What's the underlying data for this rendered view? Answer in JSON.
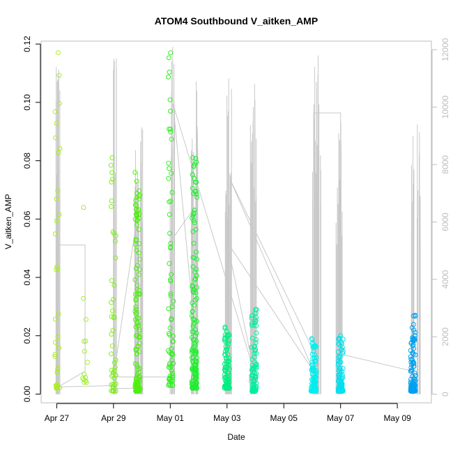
{
  "chart_data": {
    "type": "scatter",
    "title": "ATOM4 Southbound V_aitken_AMP",
    "xlabel": "Date",
    "ylabel": "V_aitken_AMP",
    "x_ticks": [
      "Apr 27",
      "Apr 29",
      "May 01",
      "May 03",
      "May 05",
      "May 07",
      "May 09"
    ],
    "x_tick_days": [
      0,
      2,
      4,
      6,
      8,
      10,
      12
    ],
    "xlim_days": [
      -0.55,
      13.2
    ],
    "ylim": [
      -0.003,
      0.121
    ],
    "y_ticks": [
      "0.00",
      "0.02",
      "0.04",
      "0.06",
      "0.08",
      "0.10",
      "0.12"
    ],
    "y_tick_values": [
      0,
      0.02,
      0.04,
      0.06,
      0.08,
      0.1,
      0.12
    ],
    "secondary_ylim": [
      -300,
      12300
    ],
    "secondary_y_ticks": [
      "0",
      "2000",
      "4000",
      "6000",
      "8000",
      "10000",
      "12000"
    ],
    "secondary_y_tick_values": [
      0,
      2000,
      4000,
      6000,
      8000,
      10000,
      12000
    ],
    "grid": false,
    "legend": "none",
    "point_color_gradient": [
      "#90ee00",
      "#00ee40",
      "#00eeee",
      "#0090ee"
    ],
    "line_color": "#c8c8c8",
    "axis_color": "#bdbdbd",
    "clusters": [
      {
        "day": 0.02,
        "ymin": 0.002,
        "ymax": 0.117,
        "n": 34,
        "color": "#a8ee20"
      },
      {
        "day": 1.0,
        "ymin": 0.004,
        "ymax": 0.064,
        "n": 14,
        "color": "#a0ee30"
      },
      {
        "day": 2.0,
        "ymin": 0.001,
        "ymax": 0.081,
        "n": 48,
        "color": "#80ee20"
      },
      {
        "day": 2.85,
        "ymin": 0.001,
        "ymax": 0.076,
        "n": 130,
        "color": "#50ee10"
      },
      {
        "day": 4.02,
        "ymin": 0.003,
        "ymax": 0.117,
        "n": 70,
        "color": "#30ee20"
      },
      {
        "day": 4.85,
        "ymin": 0.002,
        "ymax": 0.081,
        "n": 150,
        "color": "#20ee30"
      },
      {
        "day": 6.0,
        "ymin": 0.002,
        "ymax": 0.023,
        "n": 100,
        "color": "#00ee80"
      },
      {
        "day": 6.95,
        "ymin": 0.001,
        "ymax": 0.029,
        "n": 90,
        "color": "#00eea0"
      },
      {
        "day": 9.05,
        "ymin": 0.001,
        "ymax": 0.019,
        "n": 120,
        "color": "#00eeee"
      },
      {
        "day": 10.0,
        "ymin": 0.001,
        "ymax": 0.02,
        "n": 100,
        "color": "#00e0ee"
      },
      {
        "day": 12.55,
        "ymin": 0.001,
        "ymax": 0.027,
        "n": 110,
        "color": "#00a0ee"
      }
    ],
    "secondary_spikes": [
      {
        "day": 0.03,
        "max": 11400
      },
      {
        "day": 0.06,
        "max": 10900
      },
      {
        "day": 2.05,
        "max": 11700
      },
      {
        "day": 2.8,
        "max": 8500
      },
      {
        "day": 2.9,
        "max": 8800
      },
      {
        "day": 2.98,
        "max": 9300
      },
      {
        "day": 4.05,
        "max": 12100
      },
      {
        "day": 4.1,
        "max": 11600
      },
      {
        "day": 4.8,
        "max": 8900
      },
      {
        "day": 4.92,
        "max": 10900
      },
      {
        "day": 6.0,
        "max": 10400
      },
      {
        "day": 6.1,
        "max": 11000
      },
      {
        "day": 6.88,
        "max": 10000
      },
      {
        "day": 6.98,
        "max": 10800
      },
      {
        "day": 9.05,
        "max": 10100
      },
      {
        "day": 9.15,
        "max": 11400
      },
      {
        "day": 9.25,
        "max": 11800
      },
      {
        "day": 9.9,
        "max": 9100
      },
      {
        "day": 10.02,
        "max": 9500
      },
      {
        "day": 12.55,
        "max": 9000
      },
      {
        "day": 12.75,
        "max": 9400
      }
    ],
    "secondary_path": [
      [
        0.02,
        300
      ],
      [
        0.02,
        5200
      ],
      [
        1.0,
        5200
      ],
      [
        1.0,
        800
      ],
      [
        0.05,
        250
      ],
      [
        2.0,
        300
      ],
      [
        2.0,
        200
      ],
      [
        2.85,
        200
      ],
      [
        2.85,
        6300
      ],
      [
        2.0,
        600
      ],
      [
        4.02,
        600
      ],
      [
        4.0,
        5300
      ],
      [
        4.85,
        6500
      ],
      [
        4.9,
        1800
      ],
      [
        4.1,
        10100
      ],
      [
        6.95,
        800
      ],
      [
        6.0,
        5300
      ],
      [
        9.05,
        800
      ],
      [
        6.1,
        7500
      ],
      [
        9.05,
        1500
      ],
      [
        9.05,
        9800
      ],
      [
        10.0,
        9800
      ],
      [
        10.0,
        1400
      ],
      [
        12.55,
        800
      ]
    ]
  }
}
